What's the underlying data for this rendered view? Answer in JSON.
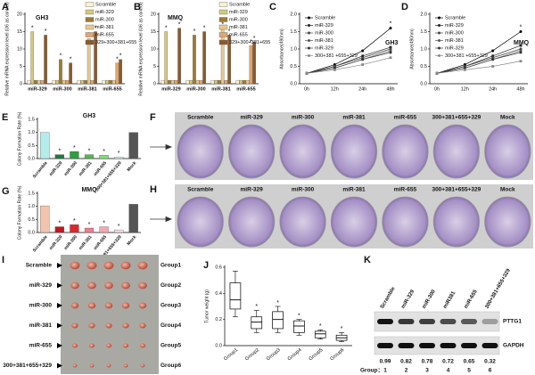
{
  "chart_data": [
    {
      "type": "bar",
      "panel": "A",
      "title": "GH3",
      "ylabel": "Relative mRNA expression level (U6 as control)",
      "categories": [
        "miR-329",
        "miR-300",
        "miR-381",
        "miR-655"
      ],
      "series": [
        {
          "name": "Scramble",
          "color": "#f7f1d0",
          "values": [
            1,
            1,
            1,
            1
          ],
          "significance": [
            null,
            null,
            null,
            null
          ]
        },
        {
          "name": "miR-329",
          "color": "#d8c77a",
          "values": [
            15,
            1,
            1,
            1
          ],
          "significance": [
            "*",
            null,
            null,
            null
          ]
        },
        {
          "name": "miR-300",
          "color": "#9d7a35",
          "values": [
            1,
            7,
            1,
            1
          ],
          "significance": [
            null,
            "*",
            null,
            null
          ]
        },
        {
          "name": "miR-381",
          "color": "#e8c98e",
          "values": [
            1,
            1,
            13,
            1
          ],
          "significance": [
            null,
            null,
            "*",
            null
          ]
        },
        {
          "name": "miR-655",
          "color": "#e0a66a",
          "values": [
            1,
            1,
            1,
            6
          ],
          "significance": [
            null,
            null,
            null,
            "*"
          ]
        },
        {
          "name": "329+300+381+655",
          "color": "#8b5a2b",
          "values": [
            14,
            6,
            15,
            7
          ],
          "significance": [
            "*",
            "*",
            "*",
            "*"
          ]
        }
      ],
      "ylim": [
        0,
        20
      ],
      "yticks": [
        0,
        5,
        10,
        15,
        20
      ]
    },
    {
      "type": "bar",
      "panel": "B",
      "title": "MMQ",
      "ylabel": "Relative mRNA expression level (U6 as control)",
      "categories": [
        "miR-329",
        "miR-300",
        "miR-381",
        "miR-655"
      ],
      "series": [
        {
          "name": "Scramble",
          "color": "#f7f1d0",
          "values": [
            1,
            1,
            1,
            1
          ],
          "significance": [
            null,
            null,
            null,
            null
          ]
        },
        {
          "name": "miR-329",
          "color": "#d8c77a",
          "values": [
            15,
            1,
            1,
            1
          ],
          "significance": [
            "*",
            null,
            null,
            null
          ]
        },
        {
          "name": "miR-300",
          "color": "#9d7a35",
          "values": [
            1,
            14,
            1,
            1
          ],
          "significance": [
            null,
            "*",
            null,
            null
          ]
        },
        {
          "name": "miR-381",
          "color": "#e8c98e",
          "values": [
            1,
            1,
            16,
            1
          ],
          "significance": [
            null,
            null,
            "*",
            null
          ]
        },
        {
          "name": "miR-655",
          "color": "#e0a66a",
          "values": [
            1,
            1,
            1,
            11
          ],
          "significance": [
            null,
            null,
            null,
            "*"
          ]
        },
        {
          "name": "329+300+381+655",
          "color": "#8b5a2b",
          "values": [
            16,
            15,
            14,
            12
          ],
          "significance": [
            "*",
            "*",
            "*",
            "*"
          ]
        }
      ],
      "ylim": [
        0,
        20
      ],
      "yticks": [
        0,
        5,
        10,
        15,
        20
      ]
    },
    {
      "type": "line",
      "panel": "C",
      "title": "GH3",
      "ylabel": "Absorbance(490nm)",
      "categories": [
        "0h",
        "12h",
        "24h",
        "48h"
      ],
      "series": [
        {
          "name": "Scramble",
          "color": "#000000",
          "values": [
            0.3,
            0.55,
            0.95,
            1.6
          ],
          "significance": [
            null,
            null,
            null,
            "*"
          ]
        },
        {
          "name": "miR-329",
          "color": "#222222",
          "values": [
            0.3,
            0.5,
            0.8,
            1.05
          ],
          "significance": [
            null,
            null,
            null,
            null
          ]
        },
        {
          "name": "miR-300",
          "color": "#444444",
          "values": [
            0.3,
            0.5,
            0.75,
            1.0
          ],
          "significance": [
            null,
            null,
            null,
            null
          ]
        },
        {
          "name": "miR-381",
          "color": "#555555",
          "values": [
            0.3,
            0.45,
            0.7,
            0.95
          ],
          "significance": [
            null,
            null,
            null,
            null
          ]
        },
        {
          "name": "miR-329",
          "color": "#333333",
          "values": [
            0.3,
            0.45,
            0.7,
            0.9
          ],
          "significance": [
            null,
            null,
            null,
            null
          ]
        },
        {
          "name": "300+381\n+655+329",
          "color": "#888888",
          "values": [
            0.3,
            0.4,
            0.55,
            0.75
          ],
          "significance": [
            null,
            null,
            null,
            null
          ]
        }
      ],
      "ylim": [
        0,
        2
      ],
      "yticks": [
        {
          "value": 0,
          "label": "0.0"
        },
        {
          "value": 0.5,
          "label": "0.5"
        },
        {
          "value": 1,
          "label": "1.0"
        },
        {
          "value": 1.5,
          "label": "1.5"
        },
        {
          "value": 2,
          "label": "2.0"
        }
      ]
    },
    {
      "type": "line",
      "panel": "D",
      "title": "MMQ",
      "ylabel": "Absorbance(490nm)",
      "categories": [
        "0h",
        "12h",
        "24h",
        "48h"
      ],
      "series": [
        {
          "name": "Scramble",
          "color": "#000000",
          "values": [
            0.3,
            0.55,
            0.95,
            1.5
          ],
          "significance": [
            null,
            null,
            null,
            "*"
          ]
        },
        {
          "name": "miR-329",
          "color": "#222222",
          "values": [
            0.3,
            0.5,
            0.8,
            1.1
          ],
          "significance": [
            null,
            null,
            null,
            null
          ]
        },
        {
          "name": "miR-300",
          "color": "#444444",
          "values": [
            0.3,
            0.5,
            0.75,
            1.0
          ],
          "significance": [
            null,
            null,
            null,
            null
          ]
        },
        {
          "name": "miR-381",
          "color": "#555555",
          "values": [
            0.3,
            0.45,
            0.7,
            0.95
          ],
          "significance": [
            null,
            null,
            null,
            null
          ]
        },
        {
          "name": "miR-329",
          "color": "#333333",
          "values": [
            0.3,
            0.45,
            0.7,
            0.9
          ],
          "significance": [
            null,
            null,
            null,
            null
          ]
        },
        {
          "name": "300+381\n+655+329",
          "color": "#888888",
          "values": [
            0.3,
            0.4,
            0.5,
            0.65
          ],
          "significance": [
            null,
            null,
            null,
            null
          ]
        }
      ],
      "ylim": [
        0,
        2
      ],
      "yticks": [
        {
          "value": 0,
          "label": "0.0"
        },
        {
          "value": 0.5,
          "label": "0.5"
        },
        {
          "value": 1,
          "label": "1.0"
        },
        {
          "value": 1.5,
          "label": "1.5"
        },
        {
          "value": 2,
          "label": "2.0"
        }
      ]
    },
    {
      "type": "colorbar",
      "panel": "E",
      "title": "GH3",
      "ylabel": "Colony Formation Rate (%)",
      "categories": [
        "Scramble",
        "miR-329",
        "miR-300",
        "miR-381",
        "miR-655",
        "300+381+655+329",
        "Mock"
      ],
      "values": [
        1.0,
        0.15,
        0.27,
        0.15,
        0.13,
        0.06,
        1.0
      ],
      "colors": [
        "#b3ece8",
        "#1e7b3a",
        "#2e9e3e",
        "#55b84a",
        "#7fe07a",
        "#d9f3f0",
        "#555555"
      ],
      "significance": [
        null,
        "*",
        "*",
        "*",
        "*",
        "*",
        null
      ],
      "ylim": [
        0,
        1.5
      ],
      "yticks": [
        {
          "value": 0,
          "label": "0.0"
        },
        {
          "value": 0.5,
          "label": "0.5"
        },
        {
          "value": 1,
          "label": "1.0"
        },
        {
          "value": 1.5,
          "label": "1.5"
        }
      ]
    },
    {
      "type": "colorbar",
      "panel": "G",
      "title": "MMQ",
      "ylabel": "Colony Formation Rate (%)",
      "categories": [
        "Scramble",
        "miR-329",
        "miR-300",
        "miR-381",
        "miR-655",
        "300+381+655+329",
        "Mock"
      ],
      "values": [
        1.02,
        0.22,
        0.3,
        0.17,
        0.22,
        0.1,
        1.08
      ],
      "colors": [
        "#f2c4ad",
        "#c8161d",
        "#e0252a",
        "#f07a8a",
        "#f4a6b0",
        "#f5dde0",
        "#555555"
      ],
      "significance": [
        null,
        "*",
        "*",
        "*",
        "*",
        "*",
        null
      ],
      "ylim": [
        0,
        1.5
      ],
      "yticks": [
        {
          "value": 0,
          "label": "0.0"
        },
        {
          "value": 0.5,
          "label": "0.5"
        },
        {
          "value": 1,
          "label": "1.0"
        },
        {
          "value": 1.5,
          "label": "1.5"
        }
      ]
    },
    {
      "type": "box",
      "panel": "J",
      "ylabel": "Tumor weight (g)",
      "categories": [
        "Group1",
        "Group2",
        "Group3",
        "Group4",
        "Group5",
        "Group6"
      ],
      "boxes": [
        {
          "min": 0.22,
          "q1": 0.28,
          "median": 0.35,
          "q3": 0.48,
          "max": 0.57
        },
        {
          "min": 0.1,
          "q1": 0.13,
          "median": 0.18,
          "q3": 0.22,
          "max": 0.27
        },
        {
          "min": 0.1,
          "q1": 0.13,
          "median": 0.2,
          "q3": 0.26,
          "max": 0.3
        },
        {
          "min": 0.08,
          "q1": 0.1,
          "median": 0.15,
          "q3": 0.19,
          "max": 0.2
        },
        {
          "min": 0.05,
          "q1": 0.06,
          "median": 0.09,
          "q3": 0.11,
          "max": 0.12
        },
        {
          "min": 0.03,
          "q1": 0.04,
          "median": 0.06,
          "q3": 0.08,
          "max": 0.1
        }
      ],
      "significance": [
        null,
        "*",
        "*",
        "*",
        "*",
        "*"
      ],
      "ylim": [
        0,
        0.6
      ],
      "yticks": [
        {
          "value": 0,
          "label": "0.0"
        },
        {
          "value": 0.2,
          "label": "0.2"
        },
        {
          "value": 0.4,
          "label": "0.4"
        },
        {
          "value": 0.6,
          "label": "0.6"
        }
      ]
    }
  ],
  "plates": [
    {
      "panel": "F",
      "labels": [
        "Scramble",
        "miR-329",
        "miR-300",
        "miR-381",
        "miR-655",
        "300+381+655+329",
        "Mock"
      ]
    },
    {
      "panel": "H",
      "labels": [
        "Scramble",
        "miR-329",
        "miR-300",
        "miR-381",
        "miR-655",
        "300+381+655+329",
        "Mock"
      ]
    }
  ],
  "tumors": {
    "panel": "I",
    "rows": [
      "Scramble",
      "miR-329",
      "miR-300",
      "miR-381",
      "miR-655",
      "300+381+655+329"
    ],
    "groups": [
      "Group1",
      "Group2",
      "Group3",
      "Group4",
      "Group5",
      "Group6"
    ]
  },
  "western_blot": {
    "panel": "K",
    "columns": [
      "Scramble",
      "miR-329",
      "miR-300",
      "miR381",
      "miR-655",
      "300+381+655+329"
    ],
    "bands": [
      "PTTG1",
      "GAPDH"
    ],
    "ratios": [
      0.99,
      0.82,
      0.78,
      0.72,
      0.65,
      0.32
    ],
    "group_label": "Group：",
    "groups": [
      1,
      2,
      3,
      4,
      5,
      6
    ]
  }
}
